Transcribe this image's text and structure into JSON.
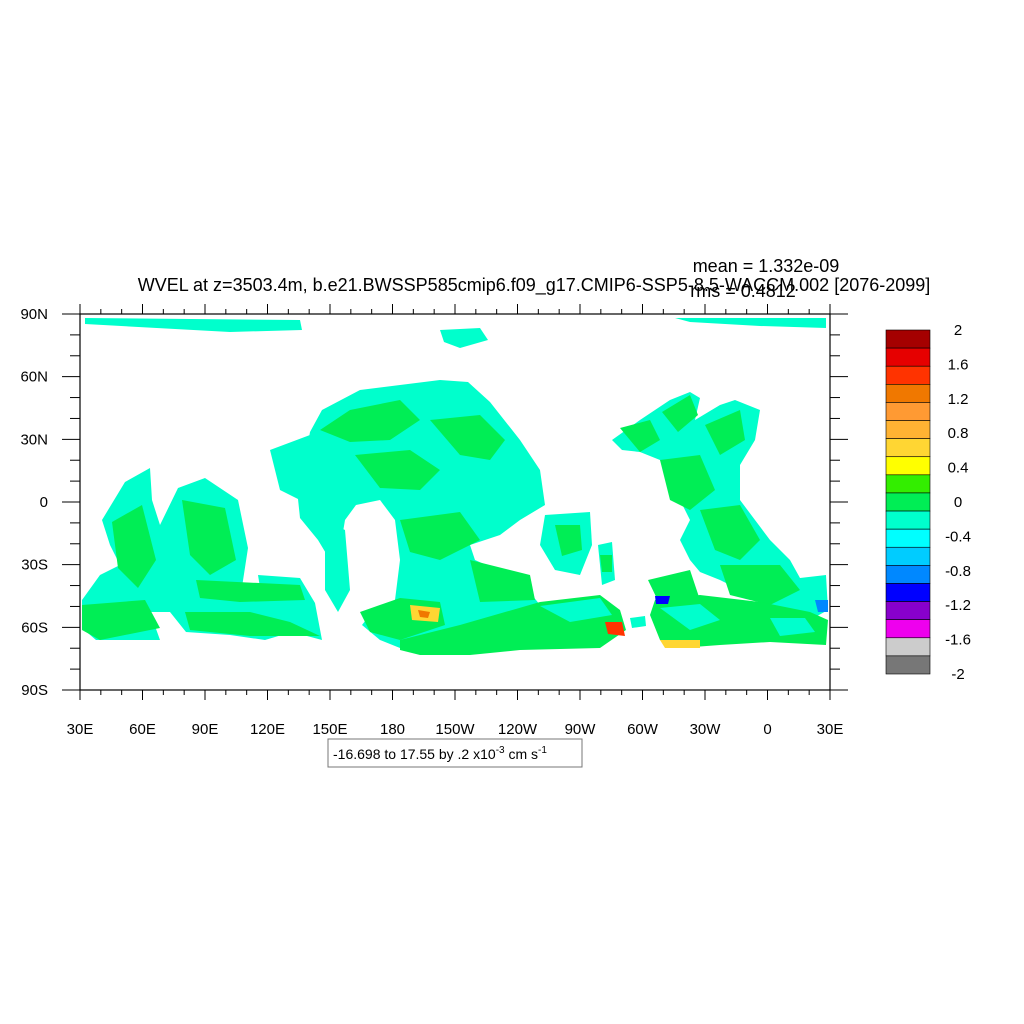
{
  "chart_data": {
    "type": "heatmap",
    "title": "WVEL at z=3503.4m, b.e21.BWSSP585cmip6.f09_g17.CMIP6-SSP5-8.5-WACCM.002 [2076-2099]",
    "stats": {
      "mean": "mean = 1.332e-09",
      "rms": "rms = 0.4812"
    },
    "x_ticks": [
      "30E",
      "60E",
      "90E",
      "120E",
      "150E",
      "180",
      "150W",
      "120W",
      "90W",
      "60W",
      "30W",
      "0",
      "30E"
    ],
    "y_ticks": [
      "90N",
      "60N",
      "30N",
      "0",
      "30S",
      "60S",
      "90S"
    ],
    "xlim": [
      30,
      390
    ],
    "ylim": [
      -90,
      90
    ],
    "info_box": {
      "text": "-16.698 to 17.55 by .2 x10",
      "exp": "-3",
      "unit": " cm s",
      "unit_exp": "-1"
    },
    "colorbar": {
      "labels": [
        "2",
        "1.6",
        "1.2",
        "0.8",
        "0.4",
        "0",
        "-0.4",
        "-0.8",
        "-1.2",
        "-1.6",
        "-2"
      ],
      "colors_top_to_bottom": [
        "#a50000",
        "#e60000",
        "#ff3300",
        "#f07800",
        "#ff9a33",
        "#ffb333",
        "#ffd633",
        "#ffff00",
        "#33ee00",
        "#00ee55",
        "#00ffcc",
        "#00ffff",
        "#00ccff",
        "#0088ff",
        "#0000ff",
        "#8800cc",
        "#ee00ee",
        "#cccccc",
        "#777777"
      ]
    }
  }
}
